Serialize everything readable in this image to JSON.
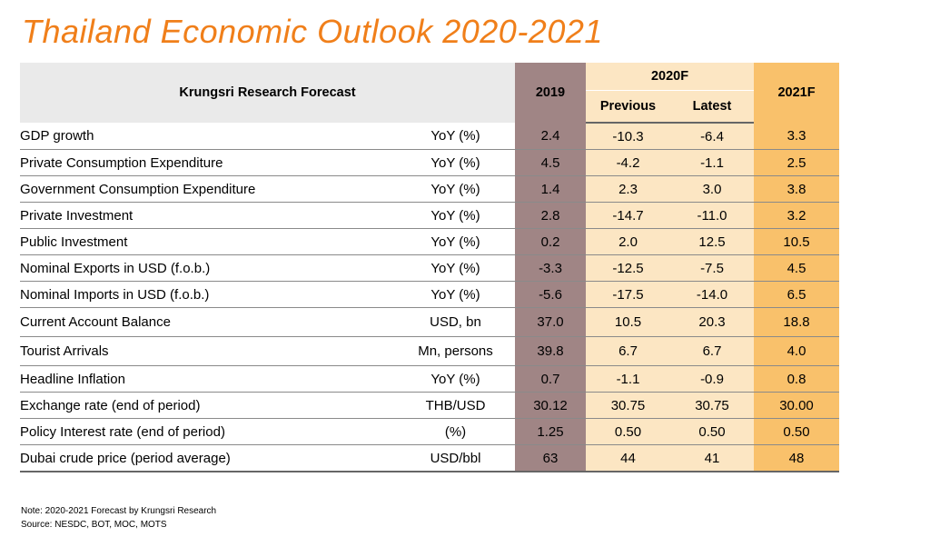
{
  "title": "Thailand Economic Outlook 2020-2021",
  "header": {
    "label": "Krungsri Research Forecast",
    "col_2019": "2019",
    "col_2020": "2020F",
    "col_previous": "Previous",
    "col_latest": "Latest",
    "col_2021": "2021F"
  },
  "colors": {
    "title": "#F07F1A",
    "col_2019_bg": "#A08585",
    "col_2020_bg": "#FCE6C3",
    "col_2021_bg": "#F9C16B",
    "header_bg": "#EAEAEA"
  },
  "rows": [
    {
      "indicator": "GDP growth",
      "unit": "YoY (%)",
      "y2019": "2.4",
      "previous": "-10.3",
      "latest": "-6.4",
      "y2021": "3.3"
    },
    {
      "indicator": "Private Consumption Expenditure",
      "unit": "YoY (%)",
      "y2019": "4.5",
      "previous": "-4.2",
      "latest": "-1.1",
      "y2021": "2.5"
    },
    {
      "indicator": "Government Consumption Expenditure",
      "unit": "YoY (%)",
      "y2019": "1.4",
      "previous": "2.3",
      "latest": "3.0",
      "y2021": "3.8"
    },
    {
      "indicator": "Private Investment",
      "unit": "YoY (%)",
      "y2019": "2.8",
      "previous": "-14.7",
      "latest": "-11.0",
      "y2021": "3.2"
    },
    {
      "indicator": "Public Investment",
      "unit": "YoY (%)",
      "y2019": "0.2",
      "previous": "2.0",
      "latest": "12.5",
      "y2021": "10.5"
    },
    {
      "indicator": "Nominal Exports in USD (f.o.b.)",
      "unit": "YoY (%)",
      "y2019": "-3.3",
      "previous": "-12.5",
      "latest": "-7.5",
      "y2021": "4.5"
    },
    {
      "indicator": "Nominal Imports in USD (f.o.b.)",
      "unit": "YoY (%)",
      "y2019": "-5.6",
      "previous": "-17.5",
      "latest": "-14.0",
      "y2021": "6.5"
    },
    {
      "indicator": "Current Account Balance",
      "unit": "USD, bn",
      "y2019": "37.0",
      "previous": "10.5",
      "latest": "20.3",
      "y2021": "18.8"
    },
    {
      "indicator": "Tourist Arrivals",
      "unit": "Mn, persons",
      "y2019": "39.8",
      "previous": "6.7",
      "latest": "6.7",
      "y2021": "4.0"
    },
    {
      "indicator": "Headline Inflation",
      "unit": "YoY (%)",
      "y2019": "0.7",
      "previous": "-1.1",
      "latest": "-0.9",
      "y2021": "0.8"
    },
    {
      "indicator": "Exchange rate (end of period)",
      "unit": "THB/USD",
      "y2019": "30.12",
      "previous": "30.75",
      "latest": "30.75",
      "y2021": "30.00"
    },
    {
      "indicator": "Policy Interest rate (end of period)",
      "unit": "(%)",
      "y2019": "1.25",
      "previous": "0.50",
      "latest": "0.50",
      "y2021": "0.50"
    },
    {
      "indicator": "Dubai crude price (period average)",
      "unit": "USD/bbl",
      "y2019": "63",
      "previous": "44",
      "latest": "41",
      "y2021": "48"
    }
  ],
  "notes": {
    "note": "Note: 2020-2021 Forecast by Krungsri Research",
    "source": "Source: NESDC, BOT, MOC, MOTS"
  }
}
